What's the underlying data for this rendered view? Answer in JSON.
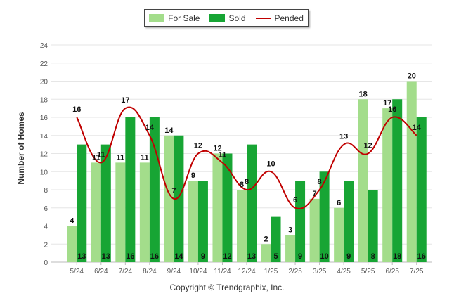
{
  "chart_data": {
    "type": "bar",
    "categories": [
      "5/24",
      "6/24",
      "7/24",
      "8/24",
      "9/24",
      "10/24",
      "11/24",
      "12/24",
      "1/25",
      "2/25",
      "3/25",
      "4/25",
      "5/25",
      "6/25",
      "7/25"
    ],
    "series": [
      {
        "name": "For Sale",
        "type": "bar",
        "color": "#a3dd8b",
        "values": [
          4,
          11,
          11,
          11,
          14,
          9,
          12,
          8,
          2,
          3,
          7,
          6,
          18,
          17,
          20
        ]
      },
      {
        "name": "Sold",
        "type": "bar",
        "color": "#17a534",
        "values": [
          13,
          13,
          16,
          16,
          14,
          9,
          12,
          13,
          5,
          9,
          10,
          9,
          8,
          18,
          16
        ]
      },
      {
        "name": "Pended",
        "type": "line",
        "color": "#c00000",
        "values": [
          16,
          11,
          17,
          14,
          7,
          12,
          11,
          8,
          10,
          6,
          8,
          13,
          12,
          16,
          14
        ]
      }
    ],
    "ylabel": "Number of Homes",
    "ylim": [
      0,
      24
    ],
    "yticks": [
      0,
      2,
      4,
      6,
      8,
      10,
      12,
      14,
      16,
      18,
      20,
      22,
      24
    ],
    "grid": true,
    "legend_position": "top-center"
  },
  "footer": {
    "copyright": "Copyright © Trendgraphix, Inc."
  },
  "legend": {
    "for_sale": "For Sale",
    "sold": "Sold",
    "pended": "Pended"
  },
  "axes": {
    "ylabel": "Number of Homes"
  }
}
